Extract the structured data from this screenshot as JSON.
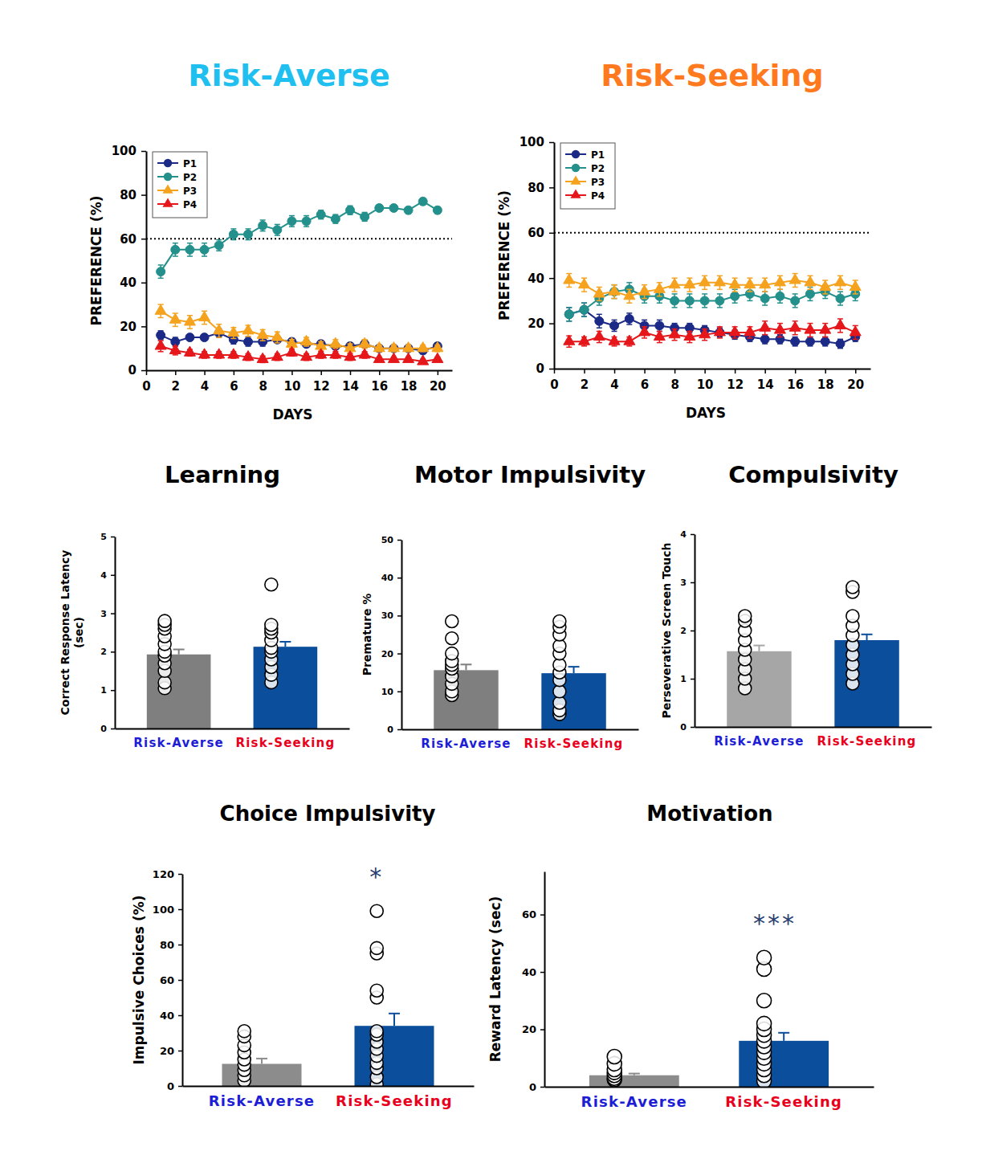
{
  "chart_data": [
    {
      "type": "line",
      "title": "Risk-Averse",
      "xlabel": "DAYS",
      "ylabel": "PREFERENCE (%)",
      "x": [
        1,
        2,
        3,
        4,
        5,
        6,
        7,
        8,
        9,
        10,
        11,
        12,
        13,
        14,
        15,
        16,
        17,
        18,
        19,
        20
      ],
      "xlim": [
        0,
        21
      ],
      "xticks": [
        0,
        2,
        4,
        6,
        8,
        10,
        12,
        14,
        16,
        18,
        20
      ],
      "ylim": [
        0,
        100
      ],
      "yticks": [
        0,
        20,
        40,
        60,
        80,
        100
      ],
      "hline": 60,
      "legend": "upper left",
      "series": [
        {
          "name": "P1",
          "color": "#1b2a86",
          "marker": "circle",
          "values": [
            16,
            13,
            15,
            15,
            17,
            14,
            13,
            13,
            14,
            13,
            12,
            12,
            11,
            11,
            12,
            10,
            10,
            10,
            9,
            11
          ],
          "errors": [
            2,
            2,
            1.5,
            1.5,
            2,
            2,
            2,
            2,
            1.5,
            1.5,
            1.5,
            1.5,
            1.5,
            1.5,
            1.5,
            1.5,
            1.5,
            1.5,
            1.5,
            1.5
          ]
        },
        {
          "name": "P2",
          "color": "#23908c",
          "marker": "circle",
          "values": [
            45,
            55,
            55,
            55,
            57,
            62,
            62,
            66,
            64,
            68,
            68,
            71,
            69,
            73,
            70,
            74,
            74,
            73,
            77,
            73
          ],
          "errors": [
            3,
            3,
            3,
            3,
            2.5,
            2.5,
            2.5,
            2.5,
            2.5,
            2.5,
            2.5,
            2,
            2,
            2,
            2,
            1.5,
            1.5,
            1.5,
            1.5,
            1.5
          ]
        },
        {
          "name": "P3",
          "color": "#f5a31f",
          "marker": "triangle",
          "values": [
            27,
            23,
            22,
            24,
            18,
            17,
            18,
            16,
            15,
            12,
            13,
            11,
            12,
            10,
            12,
            10,
            10,
            10,
            10,
            10
          ],
          "errors": [
            3,
            3,
            3,
            3,
            3,
            2.5,
            2.5,
            2.5,
            2.5,
            2,
            2,
            2,
            2,
            2,
            2,
            1.5,
            1.5,
            1.5,
            1.5,
            1.5
          ]
        },
        {
          "name": "P4",
          "color": "#e5171b",
          "marker": "triangle",
          "values": [
            11,
            9,
            8,
            7,
            7,
            7,
            6,
            5,
            6,
            8,
            6,
            7,
            7,
            6,
            7,
            5,
            5,
            5,
            4,
            5
          ],
          "errors": [
            2.5,
            2,
            1.5,
            1.5,
            1.5,
            1.5,
            1.5,
            1.5,
            1.5,
            1.5,
            1.5,
            1.5,
            1.5,
            1.5,
            1.5,
            1,
            1,
            1,
            1,
            1
          ]
        }
      ]
    },
    {
      "type": "line",
      "title": "Risk-Seeking",
      "xlabel": "DAYS",
      "ylabel": "PREFERENCE (%)",
      "x": [
        1,
        2,
        3,
        4,
        5,
        6,
        7,
        8,
        9,
        10,
        11,
        12,
        13,
        14,
        15,
        16,
        17,
        18,
        19,
        20
      ],
      "xlim": [
        0,
        21
      ],
      "xticks": [
        0,
        2,
        4,
        6,
        8,
        10,
        12,
        14,
        16,
        18,
        20
      ],
      "ylim": [
        0,
        100
      ],
      "yticks": [
        0,
        20,
        40,
        60,
        80,
        100
      ],
      "hline": 60,
      "legend": "upper left",
      "series": [
        {
          "name": "P1",
          "color": "#1b2a86",
          "marker": "circle",
          "values": [
            24,
            26,
            21,
            19,
            22,
            19,
            19,
            18,
            18,
            17,
            16,
            15,
            14,
            13,
            13,
            12,
            12,
            12,
            11,
            14
          ],
          "errors": [
            3,
            3,
            3,
            2.5,
            2.5,
            2.5,
            2.5,
            2,
            2,
            2,
            2,
            2,
            2,
            2,
            2,
            2,
            2,
            2,
            2,
            2
          ]
        },
        {
          "name": "P2",
          "color": "#23908c",
          "marker": "circle",
          "values": [
            24,
            26,
            31,
            34,
            35,
            32,
            32,
            30,
            30,
            30,
            30,
            32,
            33,
            31,
            32,
            30,
            33,
            34,
            31,
            33
          ],
          "errors": [
            3,
            3,
            3,
            3,
            3,
            3,
            3,
            3,
            3,
            3,
            3,
            3,
            3,
            3,
            3,
            3,
            3,
            3,
            3,
            3
          ]
        },
        {
          "name": "P3",
          "color": "#f5a31f",
          "marker": "triangle",
          "values": [
            39,
            37,
            33,
            34,
            32,
            34,
            35,
            37,
            37,
            38,
            38,
            37,
            37,
            37,
            38,
            39,
            38,
            36,
            38,
            36
          ],
          "errors": [
            3,
            3,
            3,
            3,
            3,
            3,
            3,
            3,
            3,
            3,
            3,
            3,
            3,
            3,
            3,
            3,
            3,
            3,
            3,
            3
          ]
        },
        {
          "name": "P4",
          "color": "#e5171b",
          "marker": "triangle",
          "values": [
            12,
            12,
            14,
            12,
            12,
            16,
            14,
            15,
            14,
            15,
            16,
            16,
            16,
            18,
            17,
            18,
            17,
            17,
            19,
            16
          ],
          "errors": [
            2.5,
            2,
            2.5,
            2,
            2,
            2.5,
            2.5,
            2.5,
            2.5,
            2.5,
            2.5,
            2.5,
            2.5,
            3,
            3,
            3,
            3,
            3,
            3,
            3
          ]
        }
      ]
    },
    {
      "type": "bar",
      "title": "Learning",
      "ylabel": [
        "Correct Response Latency",
        "(sec)"
      ],
      "categories": [
        "Risk-Averse",
        "Risk-Seeking"
      ],
      "values": [
        1.93,
        2.13
      ],
      "errors": [
        0.13,
        0.13
      ],
      "colors": [
        "#7f7f7f",
        "#0b4f9c"
      ],
      "points": [
        [
          1.05,
          1.2,
          1.5,
          1.7,
          1.9,
          2.0,
          2.2,
          2.4,
          2.6,
          2.7,
          2.8
        ],
        [
          1.2,
          1.4,
          1.6,
          1.8,
          2.0,
          2.1,
          2.3,
          2.5,
          2.6,
          2.7,
          3.75
        ]
      ],
      "ylim": [
        0,
        5
      ],
      "yticks": [
        0,
        1,
        2,
        3,
        4,
        5
      ]
    },
    {
      "type": "bar",
      "title": "Motor Impulsivity",
      "ylabel": [
        "Premature %"
      ],
      "categories": [
        "Risk-Averse",
        "Risk-Seeking"
      ],
      "values": [
        15.6,
        14.8
      ],
      "errors": [
        1.5,
        1.7
      ],
      "colors": [
        "#7f7f7f",
        "#0b4f9c"
      ],
      "points": [
        [
          9,
          10,
          12,
          14,
          16,
          17,
          18,
          20,
          24,
          28.5
        ],
        [
          4,
          5,
          7,
          10,
          13,
          15,
          17,
          20,
          22,
          25,
          27,
          28.5
        ]
      ],
      "ylim": [
        0,
        50
      ],
      "yticks": [
        0,
        10,
        20,
        30,
        40,
        50
      ]
    },
    {
      "type": "bar",
      "title": "Compulsivity",
      "ylabel": [
        "Perseverative Screen Touch"
      ],
      "categories": [
        "Risk-Averse",
        "Risk-Seeking"
      ],
      "values": [
        1.57,
        1.8
      ],
      "errors": [
        0.12,
        0.12
      ],
      "colors": [
        "#a6a6a6",
        "#0b4f9c"
      ],
      "points": [
        [
          0.8,
          1.0,
          1.2,
          1.4,
          1.6,
          1.8,
          2.0,
          2.2,
          2.3
        ],
        [
          0.9,
          1.1,
          1.3,
          1.5,
          1.7,
          1.9,
          2.1,
          2.3,
          2.8,
          2.9
        ]
      ],
      "ylim": [
        0,
        4
      ],
      "yticks": [
        0,
        1,
        2,
        3,
        4
      ]
    },
    {
      "type": "bar",
      "title": "Choice Impulsivity",
      "ylabel": [
        "Impulsive Choices (%)"
      ],
      "categories": [
        "Risk-Averse",
        "Risk-Seeking"
      ],
      "values": [
        12.5,
        34
      ],
      "errors": [
        3,
        7
      ],
      "colors": [
        "#8c8c8c",
        "#0b4f9c"
      ],
      "points": [
        [
          3,
          6,
          9,
          12,
          15,
          19,
          23,
          28,
          31
        ],
        [
          1,
          5,
          10,
          13,
          17,
          21,
          25,
          29,
          31,
          50,
          54,
          75,
          78,
          99
        ]
      ],
      "significance": [
        null,
        "*"
      ],
      "ylim": [
        0,
        120
      ],
      "yticks": [
        0,
        20,
        40,
        60,
        80,
        100,
        120
      ]
    },
    {
      "type": "bar",
      "title": "Motivation",
      "ylabel": [
        "Reward Latency (sec)"
      ],
      "categories": [
        "Risk-Averse",
        "Risk-Seeking"
      ],
      "values": [
        4,
        16
      ],
      "errors": [
        0.6,
        2.8
      ],
      "colors": [
        "#8c8c8c",
        "#0b4f9c"
      ],
      "points": [
        [
          2.5,
          3,
          4,
          5,
          6,
          8,
          10.5
        ],
        [
          2,
          4,
          6,
          8,
          10,
          12,
          14,
          16,
          18,
          20,
          22,
          30,
          41,
          45
        ]
      ],
      "significance": [
        null,
        "***"
      ],
      "ylim": [
        0,
        75
      ],
      "yticks": [
        0,
        20,
        40,
        60
      ]
    }
  ]
}
